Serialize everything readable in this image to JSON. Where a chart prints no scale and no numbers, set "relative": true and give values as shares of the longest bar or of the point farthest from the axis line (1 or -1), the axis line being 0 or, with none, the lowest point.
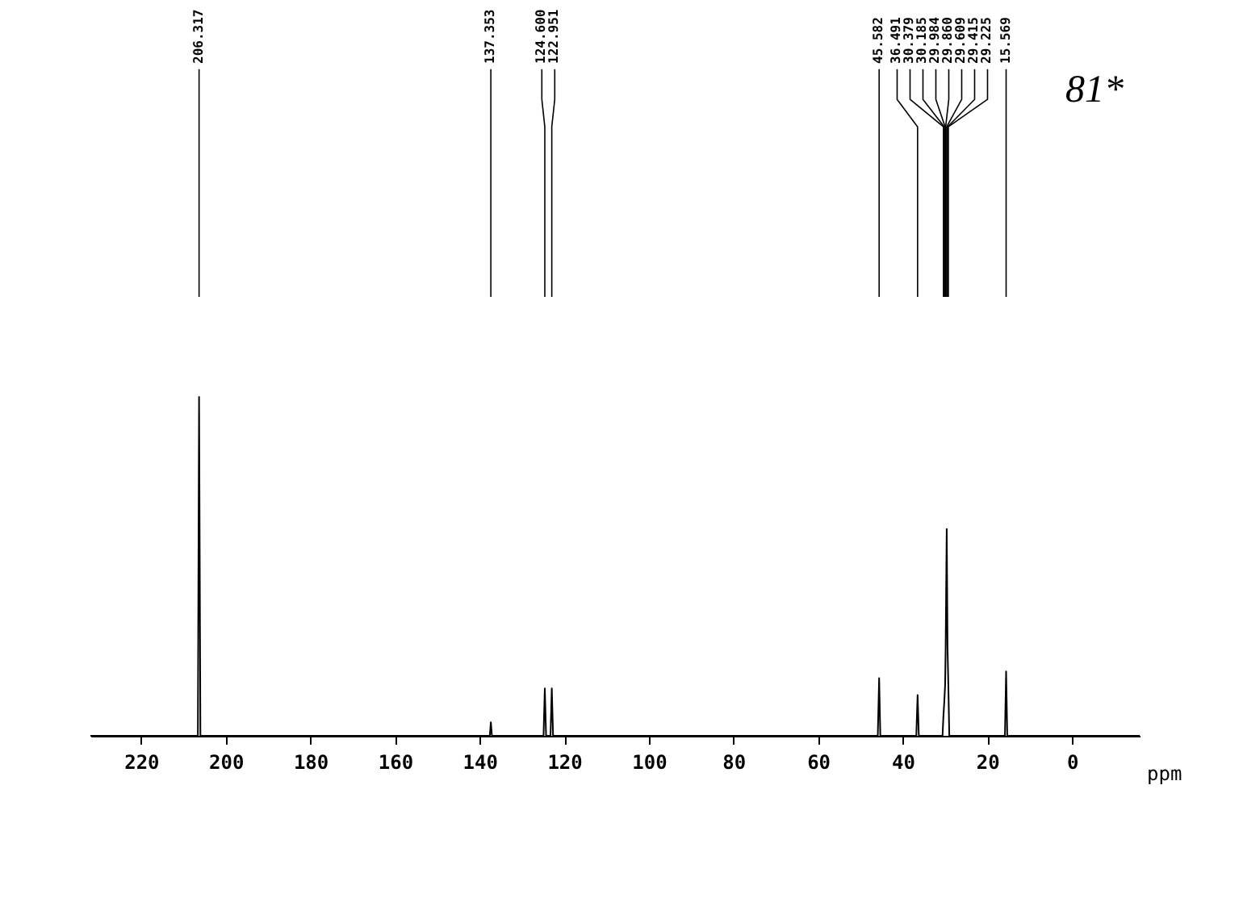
{
  "chart_data": {
    "type": "line",
    "relative": true,
    "xlabel": "ppm",
    "xlim": [
      232,
      -16
    ],
    "xticks": [
      220,
      200,
      180,
      160,
      140,
      120,
      100,
      80,
      60,
      40,
      20,
      0
    ],
    "grid": false,
    "legend": false,
    "marker": "none",
    "line_style": "solid",
    "series": [
      {
        "color": "#000000",
        "x": [
          232,
          206.6,
          206.317,
          206.0,
          137.6,
          137.353,
          137.1,
          124.9,
          124.6,
          124.3,
          123.25,
          122.951,
          122.65,
          45.9,
          45.582,
          45.3,
          36.8,
          36.491,
          36.2,
          30.6,
          30.379,
          30.185,
          29.984,
          29.86,
          29.609,
          29.415,
          29.225,
          29.0,
          15.85,
          15.569,
          15.3,
          -16
        ],
        "values": [
          0,
          0,
          1,
          0,
          0,
          0.04,
          0,
          0,
          0.14,
          0,
          0,
          0.14,
          0,
          0,
          0.17,
          0,
          0,
          0.12,
          0,
          0,
          0.06,
          0.1,
          0.15,
          0.26,
          0.61,
          0.26,
          0.15,
          0,
          0,
          0.19,
          0,
          0
        ]
      }
    ],
    "annotations": [
      {
        "text": "206.317",
        "x": 206.317
      },
      {
        "text": "137.353",
        "x": 137.353
      },
      {
        "text": "124.600",
        "x": 124.6
      },
      {
        "text": "122.951",
        "x": 122.951
      },
      {
        "text": "45.582",
        "x": 45.582
      },
      {
        "text": "36.491",
        "x": 36.491
      },
      {
        "text": "30.379",
        "x": 30.379
      },
      {
        "text": "30.185",
        "x": 30.185
      },
      {
        "text": "29.984",
        "x": 29.984
      },
      {
        "text": "29.860",
        "x": 29.86
      },
      {
        "text": "29.609",
        "x": 29.609
      },
      {
        "text": "29.415",
        "x": 29.415
      },
      {
        "text": "29.225",
        "x": 29.225
      },
      {
        "text": "15.569",
        "x": 15.569
      },
      "81*"
    ]
  }
}
